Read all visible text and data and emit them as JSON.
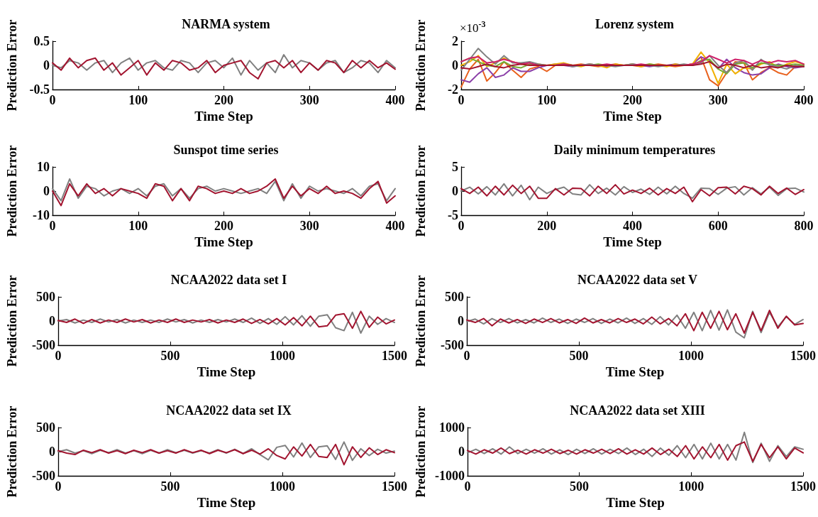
{
  "chart_data": [
    {
      "type": "line",
      "title": "NARMA system",
      "xlabel": "Time Step",
      "ylabel": "Prediction Error",
      "xlim": [
        0,
        400
      ],
      "xticks": [
        0,
        100,
        200,
        300,
        400
      ],
      "ylim": [
        -0.5,
        0.5
      ],
      "yticks": [
        -0.5,
        0,
        0.5
      ],
      "marker": "none",
      "line_style": "solid",
      "x": [
        0,
        10,
        20,
        30,
        40,
        50,
        60,
        70,
        80,
        90,
        100,
        110,
        120,
        130,
        140,
        150,
        160,
        170,
        180,
        190,
        200,
        210,
        220,
        230,
        240,
        250,
        260,
        270,
        280,
        290,
        300,
        310,
        320,
        330,
        340,
        350,
        360,
        370,
        380,
        390,
        400
      ],
      "series": [
        {
          "color": "#808080",
          "values": [
            0,
            -0.05,
            0.1,
            0.05,
            -0.1,
            0.05,
            0.1,
            -0.15,
            0.05,
            0.15,
            -0.1,
            0.05,
            0.1,
            -0.05,
            -0.1,
            0.1,
            0.05,
            -0.15,
            0.05,
            0.1,
            -0.05,
            0.15,
            -0.2,
            0.1,
            -0.1,
            0.05,
            -0.15,
            0.22,
            -0.05,
            0.1,
            0.05,
            -0.1,
            0.05,
            0.1,
            -0.15,
            -0.05,
            0.1,
            0.05,
            -0.15,
            0.1,
            -0.05
          ]
        },
        {
          "color": "#a2142f",
          "values": [
            0.05,
            -0.1,
            0.15,
            -0.05,
            0.1,
            0.15,
            -0.1,
            0.05,
            -0.2,
            -0.05,
            0.1,
            -0.2,
            0.05,
            -0.1,
            0.1,
            0.05,
            -0.1,
            -0.05,
            0.1,
            -0.15,
            0,
            0.05,
            0.1,
            -0.15,
            -0.28,
            0.05,
            0.1,
            -0.05,
            0.1,
            -0.15,
            0.05,
            -0.1,
            0.1,
            0.05,
            -0.15,
            0.1,
            -0.05,
            0.1,
            -0.05,
            0.05,
            -0.08
          ]
        }
      ]
    },
    {
      "type": "line",
      "title": "Lorenz system",
      "xlabel": "Time Step",
      "ylabel": "Prediction Error",
      "annotations": [
        "×10$^{-3}$"
      ],
      "xlim": [
        0,
        400
      ],
      "xticks": [
        0,
        100,
        200,
        300,
        400
      ],
      "ylim": [
        -2,
        2
      ],
      "yticks": [
        -2,
        0,
        2
      ],
      "marker": "none",
      "line_style": "solid",
      "x": [
        0,
        10,
        20,
        30,
        40,
        50,
        60,
        70,
        80,
        90,
        100,
        110,
        120,
        130,
        140,
        150,
        160,
        170,
        180,
        190,
        200,
        210,
        220,
        230,
        240,
        250,
        260,
        270,
        280,
        290,
        300,
        310,
        320,
        330,
        340,
        350,
        360,
        370,
        380,
        390,
        400
      ],
      "series": [
        {
          "color": "#e8601c",
          "values": [
            -1.8,
            -0.3,
            0.5,
            -1.3,
            -0.6,
            0.3,
            -0.4,
            -1,
            -0.3,
            -0.1,
            -0.5,
            0,
            0.1,
            0,
            0.1,
            0,
            -0.1,
            0,
            0.1,
            0,
            0,
            -0.1,
            0,
            0.1,
            0,
            -0.1,
            0,
            0.1,
            0.7,
            -1.2,
            -1.7,
            -0.6,
            0.3,
            0.2,
            -1.2,
            -0.6,
            -0.2,
            -0.6,
            -0.8,
            -0.1,
            0
          ]
        },
        {
          "color": "#8b3fa8",
          "values": [
            -1.2,
            -1.4,
            -0.7,
            -0.2,
            -1,
            -0.8,
            -0.2,
            -0.5,
            -0.5,
            -0.2,
            0,
            0.1,
            0,
            -0.1,
            0,
            0.1,
            0,
            -0.1,
            0,
            0,
            0.1,
            0,
            -0.1,
            0,
            0,
            0.1,
            0,
            0.1,
            0.7,
            0.4,
            -0.3,
            0.5,
            -0.2,
            -0.6,
            -0.8,
            -0.7,
            -0.2,
            0.1,
            -0.1,
            -0.2,
            -0.1
          ]
        },
        {
          "color": "#f0b000",
          "values": [
            0,
            0.3,
            0.8,
            -0.1,
            0.2,
            0.6,
            0.3,
            0.1,
            0,
            0.1,
            0,
            0.1,
            0.2,
            0,
            -0.1,
            0.1,
            0,
            -0.2,
            0.1,
            0,
            0.1,
            -0.1,
            0.1,
            0,
            -0.1,
            0.1,
            0,
            0.1,
            1.1,
            0.2,
            -1.5,
            0.1,
            -0.7,
            -0.2,
            -0.3,
            0.1,
            0.3,
            -0.2,
            0.1,
            0.3,
            0.1
          ]
        },
        {
          "color": "#77ac30",
          "values": [
            0.3,
            0.6,
            0.3,
            0,
            -0.1,
            0.3,
            -0.1,
            -0.2,
            0.1,
            0,
            0,
            0,
            0.1,
            0,
            0,
            0,
            0.1,
            0,
            0,
            0,
            0,
            0,
            0.1,
            0,
            0,
            0,
            0,
            0,
            0.4,
            0.5,
            -0.3,
            -0.7,
            0.1,
            0.2,
            -0.2,
            0.2,
            0.1,
            0,
            0,
            0.1,
            0
          ]
        },
        {
          "color": "#808080",
          "values": [
            -0.4,
            0.5,
            1.4,
            0.7,
            0.1,
            0.8,
            0.2,
            0.2,
            0.3,
            0.1,
            0,
            0,
            0.1,
            -0.1,
            0,
            0.1,
            0,
            0,
            -0.1,
            0,
            0.1,
            0,
            0,
            -0.1,
            0,
            0,
            0.1,
            0,
            0.2,
            0.8,
            0,
            -0.6,
            0.2,
            0.4,
            -0.4,
            0.5,
            0,
            -0.1,
            -0.3,
            0,
            -0.1
          ]
        },
        {
          "color": "#d0206a",
          "values": [
            0.3,
            0.6,
            0.7,
            0.2,
            0.3,
            0.5,
            0.3,
            0.1,
            0.2,
            0,
            0,
            0,
            0.1,
            0,
            0,
            0,
            0,
            0.1,
            0,
            0,
            0,
            0.1,
            0,
            0,
            0,
            0,
            0,
            0.1,
            0.3,
            0.8,
            0.5,
            0.2,
            0.5,
            0.4,
            0.1,
            0.4,
            0.2,
            0.4,
            0.3,
            0.4,
            0.1
          ]
        },
        {
          "color": "#a2142f",
          "values": [
            -0.2,
            -0.3,
            -0.1,
            0.1,
            -0.1,
            -0.2,
            0,
            0.1,
            0,
            0,
            0,
            0,
            0,
            0,
            0,
            0,
            0,
            0,
            0,
            0,
            0,
            0,
            0,
            0,
            0,
            0,
            0,
            0,
            0.1,
            0.3,
            -0.2,
            0.1,
            0,
            -0.2,
            0,
            -0.2,
            -0.1,
            -0.2,
            0,
            -0.1,
            -0.1
          ]
        }
      ]
    },
    {
      "type": "line",
      "title": "Sunspot time series",
      "xlabel": "Time Step",
      "ylabel": "Prediction Error",
      "xlim": [
        0,
        400
      ],
      "xticks": [
        0,
        100,
        200,
        300,
        400
      ],
      "ylim": [
        -10,
        10
      ],
      "yticks": [
        -10,
        0,
        10
      ],
      "marker": "none",
      "line_style": "solid",
      "x": [
        0,
        10,
        20,
        30,
        40,
        50,
        60,
        70,
        80,
        90,
        100,
        110,
        120,
        130,
        140,
        150,
        160,
        170,
        180,
        190,
        200,
        210,
        220,
        230,
        240,
        250,
        260,
        270,
        280,
        290,
        300,
        310,
        320,
        330,
        340,
        350,
        360,
        370,
        380,
        390,
        400
      ],
      "series": [
        {
          "color": "#808080",
          "values": [
            1,
            -4,
            5,
            -3,
            2,
            1,
            -2,
            0,
            1,
            -1,
            1,
            -2,
            2,
            3,
            -2,
            1,
            -3,
            1,
            2,
            0,
            1,
            0,
            -1,
            0,
            1,
            -1,
            4,
            -4,
            3,
            -3,
            2,
            0,
            1,
            0,
            -1,
            1,
            -2,
            2,
            3,
            -4,
            1
          ]
        },
        {
          "color": "#a2142f",
          "values": [
            0,
            -6,
            3,
            -2,
            3,
            -1,
            1,
            -2,
            1,
            0,
            -1,
            -3,
            3,
            2,
            -4,
            1,
            -4,
            2,
            1,
            -1,
            0,
            -1,
            1,
            -1,
            0,
            2,
            5,
            -3,
            2,
            -2,
            1,
            -1,
            2,
            -1,
            0,
            -1,
            -3,
            1,
            4,
            -5,
            -2
          ]
        }
      ]
    },
    {
      "type": "line",
      "title": "Daily minimum temperatures",
      "xlabel": "Time Step",
      "ylabel": "Prediction Error",
      "xlim": [
        0,
        800
      ],
      "xticks": [
        0,
        200,
        400,
        600,
        800
      ],
      "ylim": [
        -5,
        5
      ],
      "yticks": [
        -5,
        0,
        5
      ],
      "marker": "none",
      "line_style": "solid",
      "x": [
        0,
        20,
        40,
        60,
        80,
        100,
        120,
        140,
        160,
        180,
        200,
        220,
        240,
        260,
        280,
        300,
        320,
        340,
        360,
        380,
        400,
        420,
        440,
        460,
        480,
        500,
        520,
        540,
        560,
        580,
        600,
        620,
        640,
        660,
        680,
        700,
        720,
        740,
        760,
        780,
        800
      ],
      "series": [
        {
          "color": "#808080",
          "values": [
            0,
            0.8,
            -0.6,
            0.9,
            -0.8,
            1.5,
            -1,
            1.2,
            -1.8,
            0.8,
            -0.5,
            0.3,
            0.8,
            -0.6,
            -0.8,
            1.3,
            -0.5,
            0.6,
            -0.8,
            0.9,
            -0.3,
            0.4,
            -0.7,
            0.8,
            -0.6,
            1,
            -0.5,
            -1.5,
            0.6,
            0.5,
            -0.7,
            0.6,
            0.9,
            -0.8,
            0.7,
            -0.6,
            0.8,
            -0.9,
            0.5,
            0.6,
            -0.2
          ]
        },
        {
          "color": "#a2142f",
          "values": [
            0.5,
            -0.5,
            0.8,
            -1,
            1,
            -0.8,
            1.2,
            -0.5,
            1,
            -1.5,
            -1.5,
            0.5,
            -0.8,
            0.6,
            0.5,
            -1,
            1,
            -0.5,
            1.3,
            -0.6,
            0.2,
            -0.5,
            0.6,
            -0.8,
            0.5,
            -0.5,
            0.8,
            -2.2,
            0.3,
            -1,
            0.7,
            0.8,
            -0.6,
            1,
            0.5,
            -0.8,
            1,
            -0.5,
            0.6,
            -0.7,
            0.3
          ]
        }
      ]
    },
    {
      "type": "line",
      "title": "NCAA2022 data set I",
      "xlabel": "Time Step",
      "ylabel": "Prediction Error",
      "xlim": [
        0,
        1500
      ],
      "xticks": [
        0,
        500,
        1000,
        1500
      ],
      "ylim": [
        -500,
        500
      ],
      "yticks": [
        -500,
        0,
        500
      ],
      "marker": "none",
      "line_style": "solid",
      "x": [
        0,
        37.5,
        75,
        112.5,
        150,
        187.5,
        225,
        262.5,
        300,
        337.5,
        375,
        412.5,
        450,
        487.5,
        525,
        562.5,
        600,
        637.5,
        675,
        712.5,
        750,
        787.5,
        825,
        862.5,
        900,
        937.5,
        975,
        1012.5,
        1050,
        1087.5,
        1125,
        1162.5,
        1200,
        1237.5,
        1275,
        1312.5,
        1350,
        1387.5,
        1425,
        1462.5,
        1500
      ],
      "series": [
        {
          "color": "#808080",
          "values": [
            0,
            30,
            -40,
            20,
            -30,
            40,
            -20,
            30,
            -40,
            20,
            -30,
            20,
            -30,
            40,
            -20,
            30,
            -40,
            20,
            -30,
            30,
            -20,
            40,
            -30,
            60,
            -50,
            50,
            -70,
            90,
            -80,
            110,
            -110,
            100,
            130,
            -140,
            -200,
            180,
            -250,
            100,
            -70,
            50,
            -30
          ]
        },
        {
          "color": "#a2142f",
          "values": [
            10,
            -30,
            40,
            -50,
            30,
            -40,
            20,
            -30,
            40,
            -20,
            30,
            -40,
            20,
            -30,
            40,
            -30,
            20,
            -20,
            30,
            -40,
            20,
            -30,
            40,
            -50,
            30,
            -60,
            50,
            -80,
            70,
            -100,
            100,
            -120,
            -100,
            120,
            150,
            -150,
            200,
            -130,
            80,
            -60,
            20
          ]
        }
      ]
    },
    {
      "type": "line",
      "title": "NCAA2022 data set V",
      "xlabel": "Time Step",
      "ylabel": "Prediction Error",
      "xlim": [
        0,
        1500
      ],
      "xticks": [
        0,
        500,
        1000,
        1500
      ],
      "ylim": [
        -500,
        500
      ],
      "yticks": [
        -500,
        0,
        500
      ],
      "marker": "none",
      "line_style": "solid",
      "x": [
        0,
        37.5,
        75,
        112.5,
        150,
        187.5,
        225,
        262.5,
        300,
        337.5,
        375,
        412.5,
        450,
        487.5,
        525,
        562.5,
        600,
        637.5,
        675,
        712.5,
        750,
        787.5,
        825,
        862.5,
        900,
        937.5,
        975,
        1012.5,
        1050,
        1087.5,
        1125,
        1162.5,
        1200,
        1237.5,
        1275,
        1312.5,
        1350,
        1387.5,
        1425,
        1462.5,
        1500
      ],
      "series": [
        {
          "color": "#808080",
          "values": [
            -10,
            40,
            -60,
            50,
            -30,
            50,
            -40,
            30,
            -40,
            60,
            -30,
            40,
            -50,
            40,
            -30,
            50,
            -50,
            40,
            -40,
            60,
            -50,
            50,
            -70,
            90,
            -80,
            120,
            -150,
            180,
            -200,
            220,
            -190,
            230,
            -230,
            -350,
            200,
            -240,
            180,
            -120,
            90,
            -70,
            30
          ]
        },
        {
          "color": "#a2142f",
          "values": [
            20,
            -30,
            50,
            -100,
            40,
            -40,
            30,
            -50,
            40,
            -30,
            50,
            -40,
            30,
            -50,
            60,
            -40,
            30,
            -40,
            50,
            -30,
            40,
            -60,
            80,
            -60,
            50,
            -100,
            150,
            -200,
            180,
            -150,
            200,
            -180,
            150,
            -250,
            180,
            -200,
            220,
            -150,
            100,
            -80,
            -50
          ]
        }
      ]
    },
    {
      "type": "line",
      "title": "NCAA2022 data set IX",
      "xlabel": "Time Step",
      "ylabel": "Prediction Error",
      "xlim": [
        0,
        1500
      ],
      "xticks": [
        0,
        500,
        1000,
        1500
      ],
      "ylim": [
        -500,
        500
      ],
      "yticks": [
        -500,
        0,
        500
      ],
      "marker": "none",
      "line_style": "solid",
      "x": [
        0,
        37.5,
        75,
        112.5,
        150,
        187.5,
        225,
        262.5,
        300,
        337.5,
        375,
        412.5,
        450,
        487.5,
        525,
        562.5,
        600,
        637.5,
        675,
        712.5,
        750,
        787.5,
        825,
        862.5,
        900,
        937.5,
        975,
        1012.5,
        1050,
        1087.5,
        1125,
        1162.5,
        1200,
        1237.5,
        1275,
        1312.5,
        1350,
        1387.5,
        1425,
        1462.5,
        1500
      ],
      "series": [
        {
          "color": "#808080",
          "values": [
            0,
            40,
            -30,
            20,
            -40,
            30,
            -20,
            40,
            -30,
            20,
            -40,
            30,
            -30,
            40,
            -20,
            30,
            -30,
            20,
            -30,
            40,
            -30,
            50,
            -40,
            60,
            -60,
            -170,
            90,
            130,
            -110,
            180,
            -120,
            100,
            120,
            -160,
            200,
            -180,
            60,
            -80,
            50,
            -30,
            10
          ]
        },
        {
          "color": "#a2142f",
          "values": [
            20,
            -30,
            -60,
            30,
            -20,
            40,
            -30,
            20,
            -40,
            30,
            -20,
            40,
            -30,
            20,
            -30,
            40,
            -20,
            30,
            -40,
            30,
            -20,
            40,
            -40,
            30,
            -50,
            60,
            -80,
            -150,
            100,
            -90,
            150,
            -100,
            -120,
            150,
            -270,
            100,
            -120,
            80,
            -60,
            40,
            -20
          ]
        }
      ]
    },
    {
      "type": "line",
      "title": "NCAA2022 data set XIII",
      "xlabel": "Time Step",
      "ylabel": "Prediction Error",
      "xlim": [
        0,
        1500
      ],
      "xticks": [
        0,
        500,
        1000,
        1500
      ],
      "ylim": [
        -1000,
        1000
      ],
      "yticks": [
        -1000,
        0,
        1000
      ],
      "marker": "none",
      "line_style": "solid",
      "x": [
        0,
        37.5,
        75,
        112.5,
        150,
        187.5,
        225,
        262.5,
        300,
        337.5,
        375,
        412.5,
        450,
        487.5,
        525,
        562.5,
        600,
        637.5,
        675,
        712.5,
        750,
        787.5,
        825,
        862.5,
        900,
        937.5,
        975,
        1012.5,
        1050,
        1087.5,
        1125,
        1162.5,
        1200,
        1237.5,
        1275,
        1312.5,
        1350,
        1387.5,
        1425,
        1462.5,
        1500
      ],
      "series": [
        {
          "color": "#808080",
          "values": [
            -50,
            100,
            -80,
            120,
            -100,
            200,
            -80,
            100,
            -60,
            120,
            -100,
            80,
            -120,
            100,
            -80,
            120,
            -100,
            100,
            -80,
            150,
            -120,
            100,
            -200,
            150,
            -150,
            250,
            -250,
            300,
            -300,
            350,
            -300,
            300,
            -350,
            800,
            -450,
            350,
            -400,
            250,
            -200,
            200,
            100
          ]
        },
        {
          "color": "#a2142f",
          "values": [
            50,
            -100,
            80,
            -60,
            150,
            -80,
            60,
            -100,
            80,
            -60,
            100,
            -80,
            60,
            -100,
            80,
            -60,
            100,
            -80,
            120,
            -100,
            80,
            -100,
            150,
            -120,
            100,
            -200,
            250,
            -300,
            200,
            -250,
            300,
            -350,
            250,
            400,
            -400,
            300,
            -250,
            200,
            -300,
            150,
            -50
          ]
        }
      ]
    }
  ]
}
